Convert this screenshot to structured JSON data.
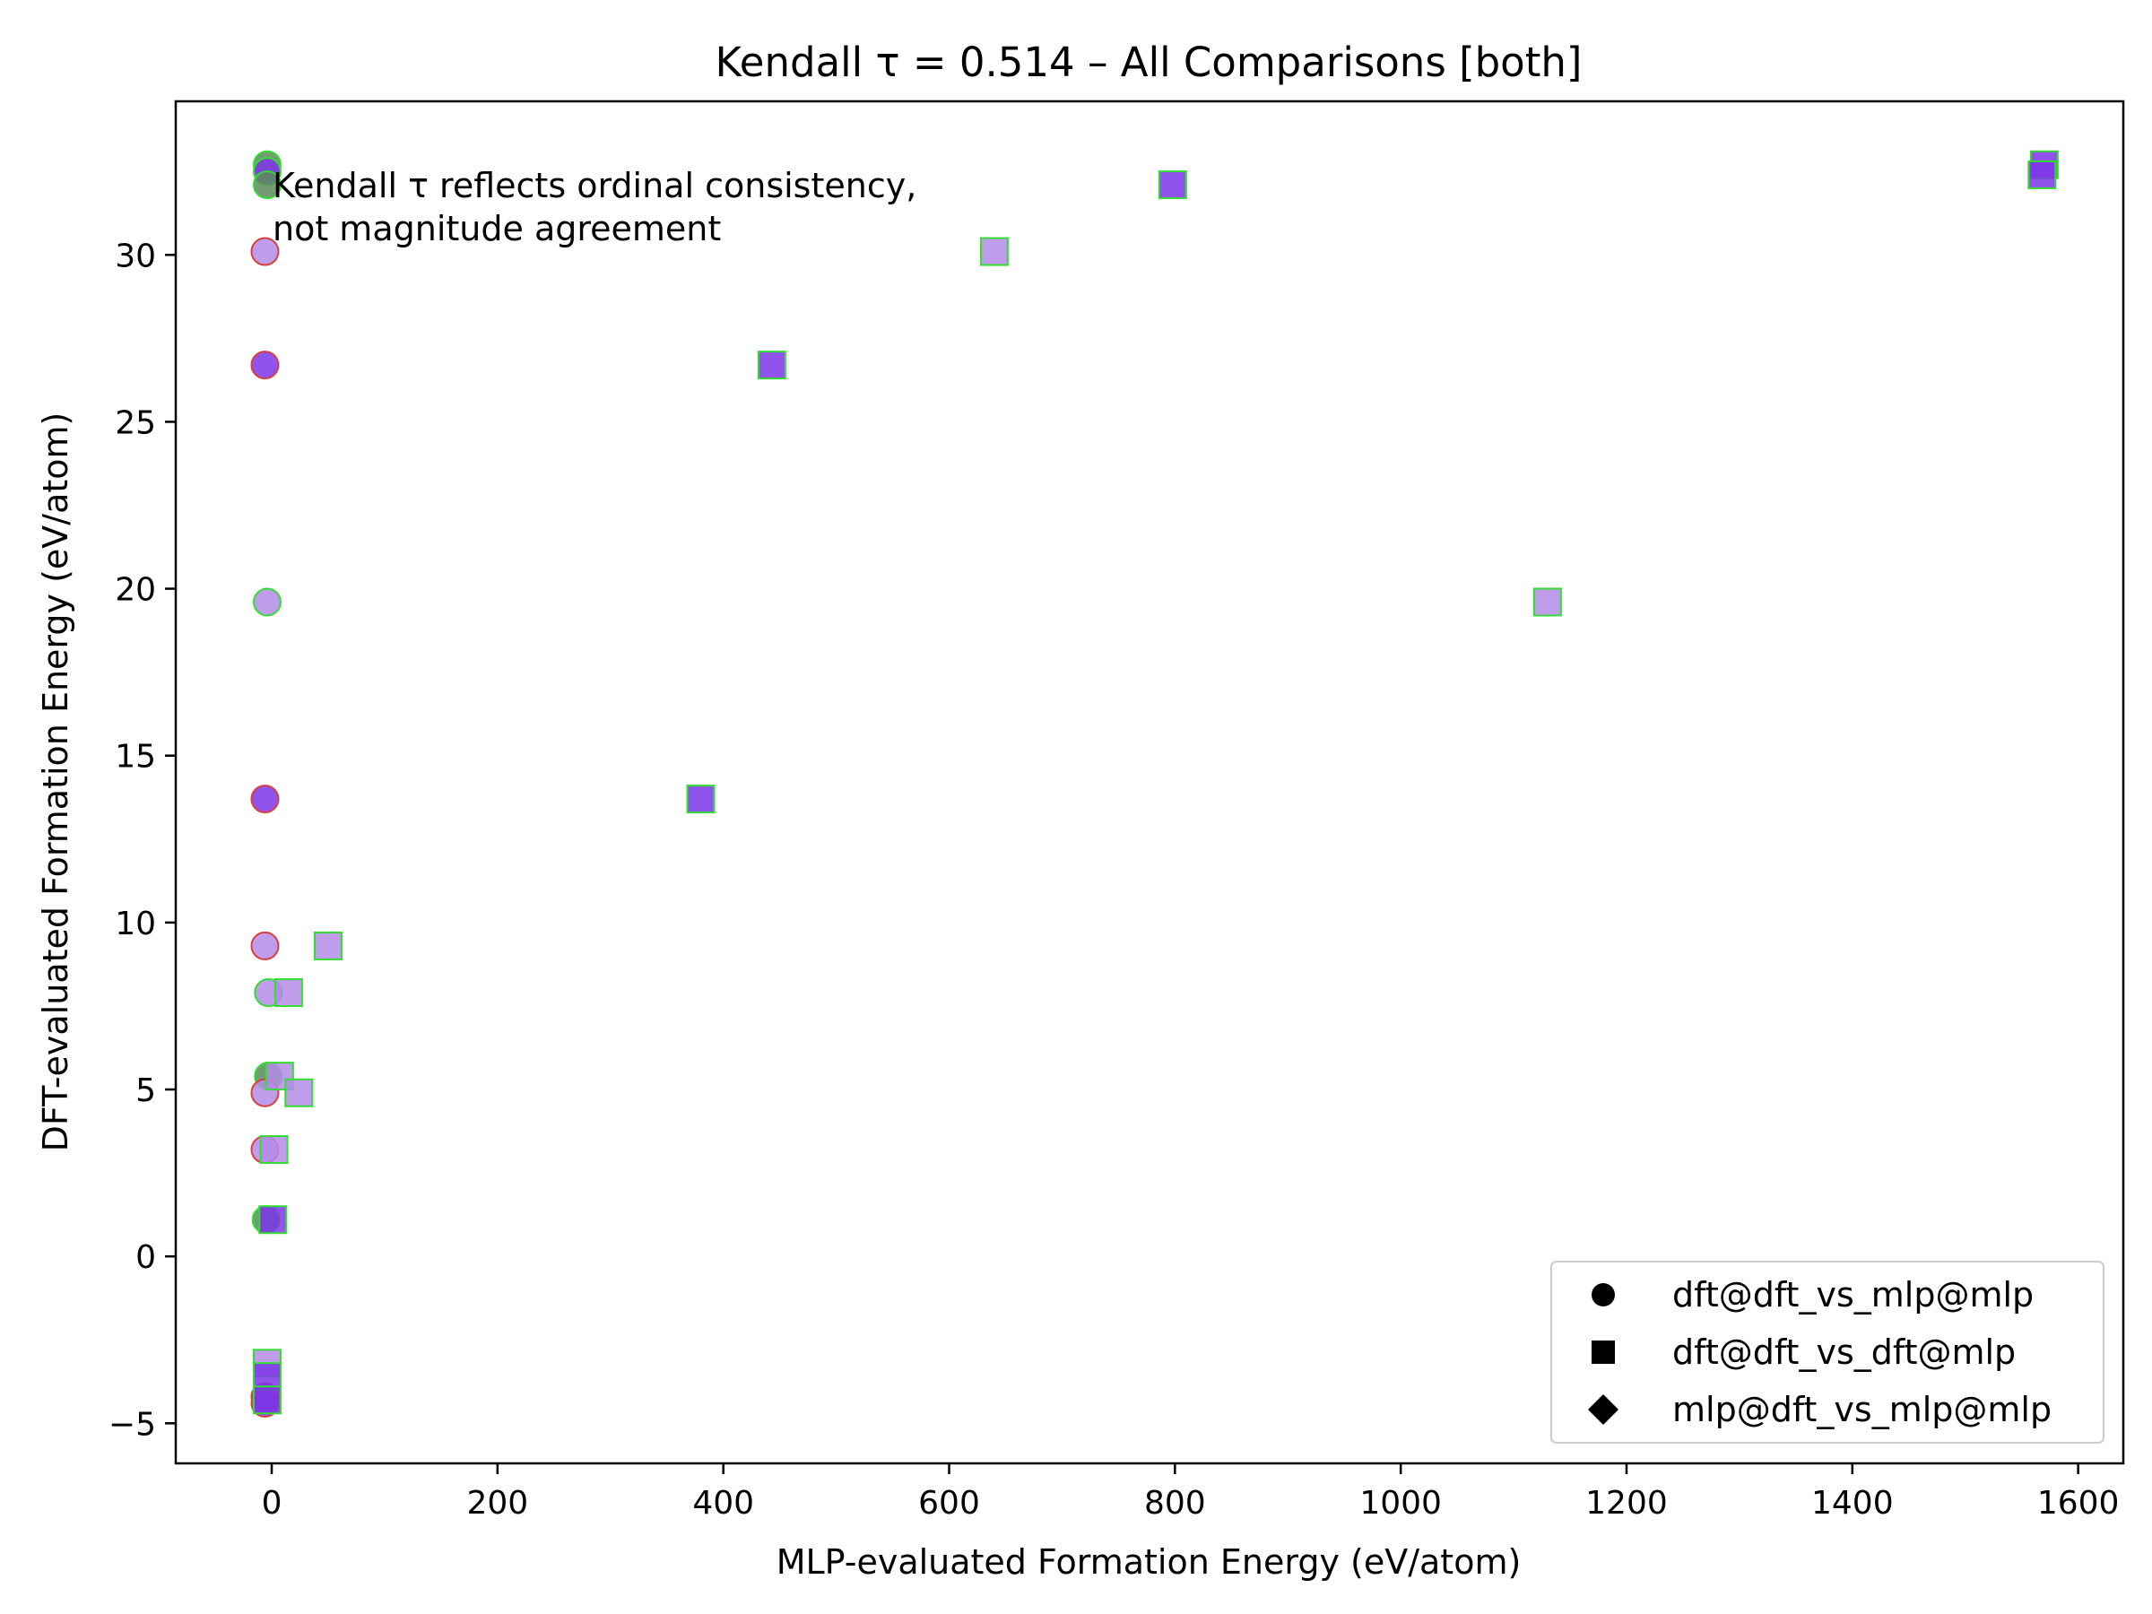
{
  "chart_data": {
    "type": "scatter",
    "title": "Kendall τ = 0.514 – All Comparisons [both]",
    "xlabel": "MLP-evaluated Formation Energy (eV/atom)",
    "ylabel": "DFT-evaluated Formation Energy (eV/atom)",
    "xlim": [
      -85,
      1640
    ],
    "ylim": [
      -6.2,
      34.6
    ],
    "xticks": [
      0,
      200,
      400,
      600,
      800,
      1000,
      1200,
      1400,
      1600
    ],
    "yticks": [
      -5,
      0,
      5,
      10,
      15,
      20,
      25,
      30
    ],
    "grid": false,
    "legend_position": "bottom-right",
    "annotation": [
      "Kendall τ reflects ordinal consistency,",
      "not magnitude agreement"
    ],
    "legend": [
      {
        "label": "dft@dft_vs_mlp@mlp",
        "marker": "circle"
      },
      {
        "label": "dft@dft_vs_dft@mlp",
        "marker": "square"
      },
      {
        "label": "mlp@dft_vs_mlp@mlp",
        "marker": "diamond"
      }
    ],
    "colors": {
      "fill_dark": "#7d35e8",
      "fill_light": "#b48ce6",
      "fill_olive": "#5c8a5c",
      "edge_green": "#33dd33",
      "edge_red": "#d84040"
    },
    "series": [
      {
        "name": "dft@dft_vs_mlp@mlp",
        "marker": "circle",
        "points": [
          {
            "x": -4,
            "y": 32.7,
            "fill": "fill_olive",
            "edge": "edge_green"
          },
          {
            "x": -4,
            "y": 32.5,
            "fill": "fill_dark",
            "edge": "edge_green"
          },
          {
            "x": -4,
            "y": 32.1,
            "fill": "fill_olive",
            "edge": "edge_green"
          },
          {
            "x": -6,
            "y": 30.1,
            "fill": "fill_light",
            "edge": "edge_red"
          },
          {
            "x": -6,
            "y": 26.7,
            "fill": "fill_dark",
            "edge": "edge_red"
          },
          {
            "x": -4,
            "y": 19.6,
            "fill": "fill_light",
            "edge": "edge_green"
          },
          {
            "x": -6,
            "y": 13.7,
            "fill": "fill_dark",
            "edge": "edge_red"
          },
          {
            "x": -6,
            "y": 9.3,
            "fill": "fill_light",
            "edge": "edge_red"
          },
          {
            "x": -3,
            "y": 7.9,
            "fill": "fill_light",
            "edge": "edge_green"
          },
          {
            "x": -3,
            "y": 5.4,
            "fill": "fill_olive",
            "edge": "edge_green"
          },
          {
            "x": -6,
            "y": 4.9,
            "fill": "fill_light",
            "edge": "edge_red"
          },
          {
            "x": -6,
            "y": 3.2,
            "fill": "fill_light",
            "edge": "edge_red"
          },
          {
            "x": -5,
            "y": 1.1,
            "fill": "fill_olive",
            "edge": "edge_green"
          },
          {
            "x": -6,
            "y": -4.2,
            "fill": "fill_dark",
            "edge": "edge_red"
          },
          {
            "x": -6,
            "y": -4.4,
            "fill": "fill_dark",
            "edge": "edge_red"
          }
        ]
      },
      {
        "name": "dft@dft_vs_dft@mlp",
        "marker": "square",
        "points": [
          {
            "x": 1570,
            "y": 32.7,
            "fill": "fill_dark",
            "edge": "edge_green"
          },
          {
            "x": 1568,
            "y": 32.4,
            "fill": "fill_dark",
            "edge": "edge_green"
          },
          {
            "x": 798,
            "y": 32.1,
            "fill": "fill_dark",
            "edge": "edge_green"
          },
          {
            "x": 640,
            "y": 30.1,
            "fill": "fill_light",
            "edge": "edge_green"
          },
          {
            "x": 443,
            "y": 26.7,
            "fill": "fill_dark",
            "edge": "edge_green"
          },
          {
            "x": 1130,
            "y": 19.6,
            "fill": "fill_light",
            "edge": "edge_green"
          },
          {
            "x": 380,
            "y": 13.7,
            "fill": "fill_dark",
            "edge": "edge_green"
          },
          {
            "x": 50,
            "y": 9.3,
            "fill": "fill_light",
            "edge": "edge_green"
          },
          {
            "x": 15,
            "y": 7.9,
            "fill": "fill_light",
            "edge": "edge_green"
          },
          {
            "x": 7,
            "y": 5.4,
            "fill": "fill_light",
            "edge": "edge_green"
          },
          {
            "x": 24,
            "y": 4.9,
            "fill": "fill_light",
            "edge": "edge_green"
          },
          {
            "x": 2,
            "y": 3.2,
            "fill": "fill_light",
            "edge": "edge_green"
          },
          {
            "x": 1,
            "y": 1.1,
            "fill": "fill_dark",
            "edge": "edge_green"
          },
          {
            "x": -4,
            "y": -3.2,
            "fill": "fill_light",
            "edge": "edge_green"
          },
          {
            "x": -4,
            "y": -3.6,
            "fill": "fill_dark",
            "edge": "edge_green"
          },
          {
            "x": -4,
            "y": -4.3,
            "fill": "fill_dark",
            "edge": "edge_green"
          }
        ]
      },
      {
        "name": "mlp@dft_vs_mlp@mlp",
        "marker": "diamond",
        "points": []
      }
    ]
  }
}
